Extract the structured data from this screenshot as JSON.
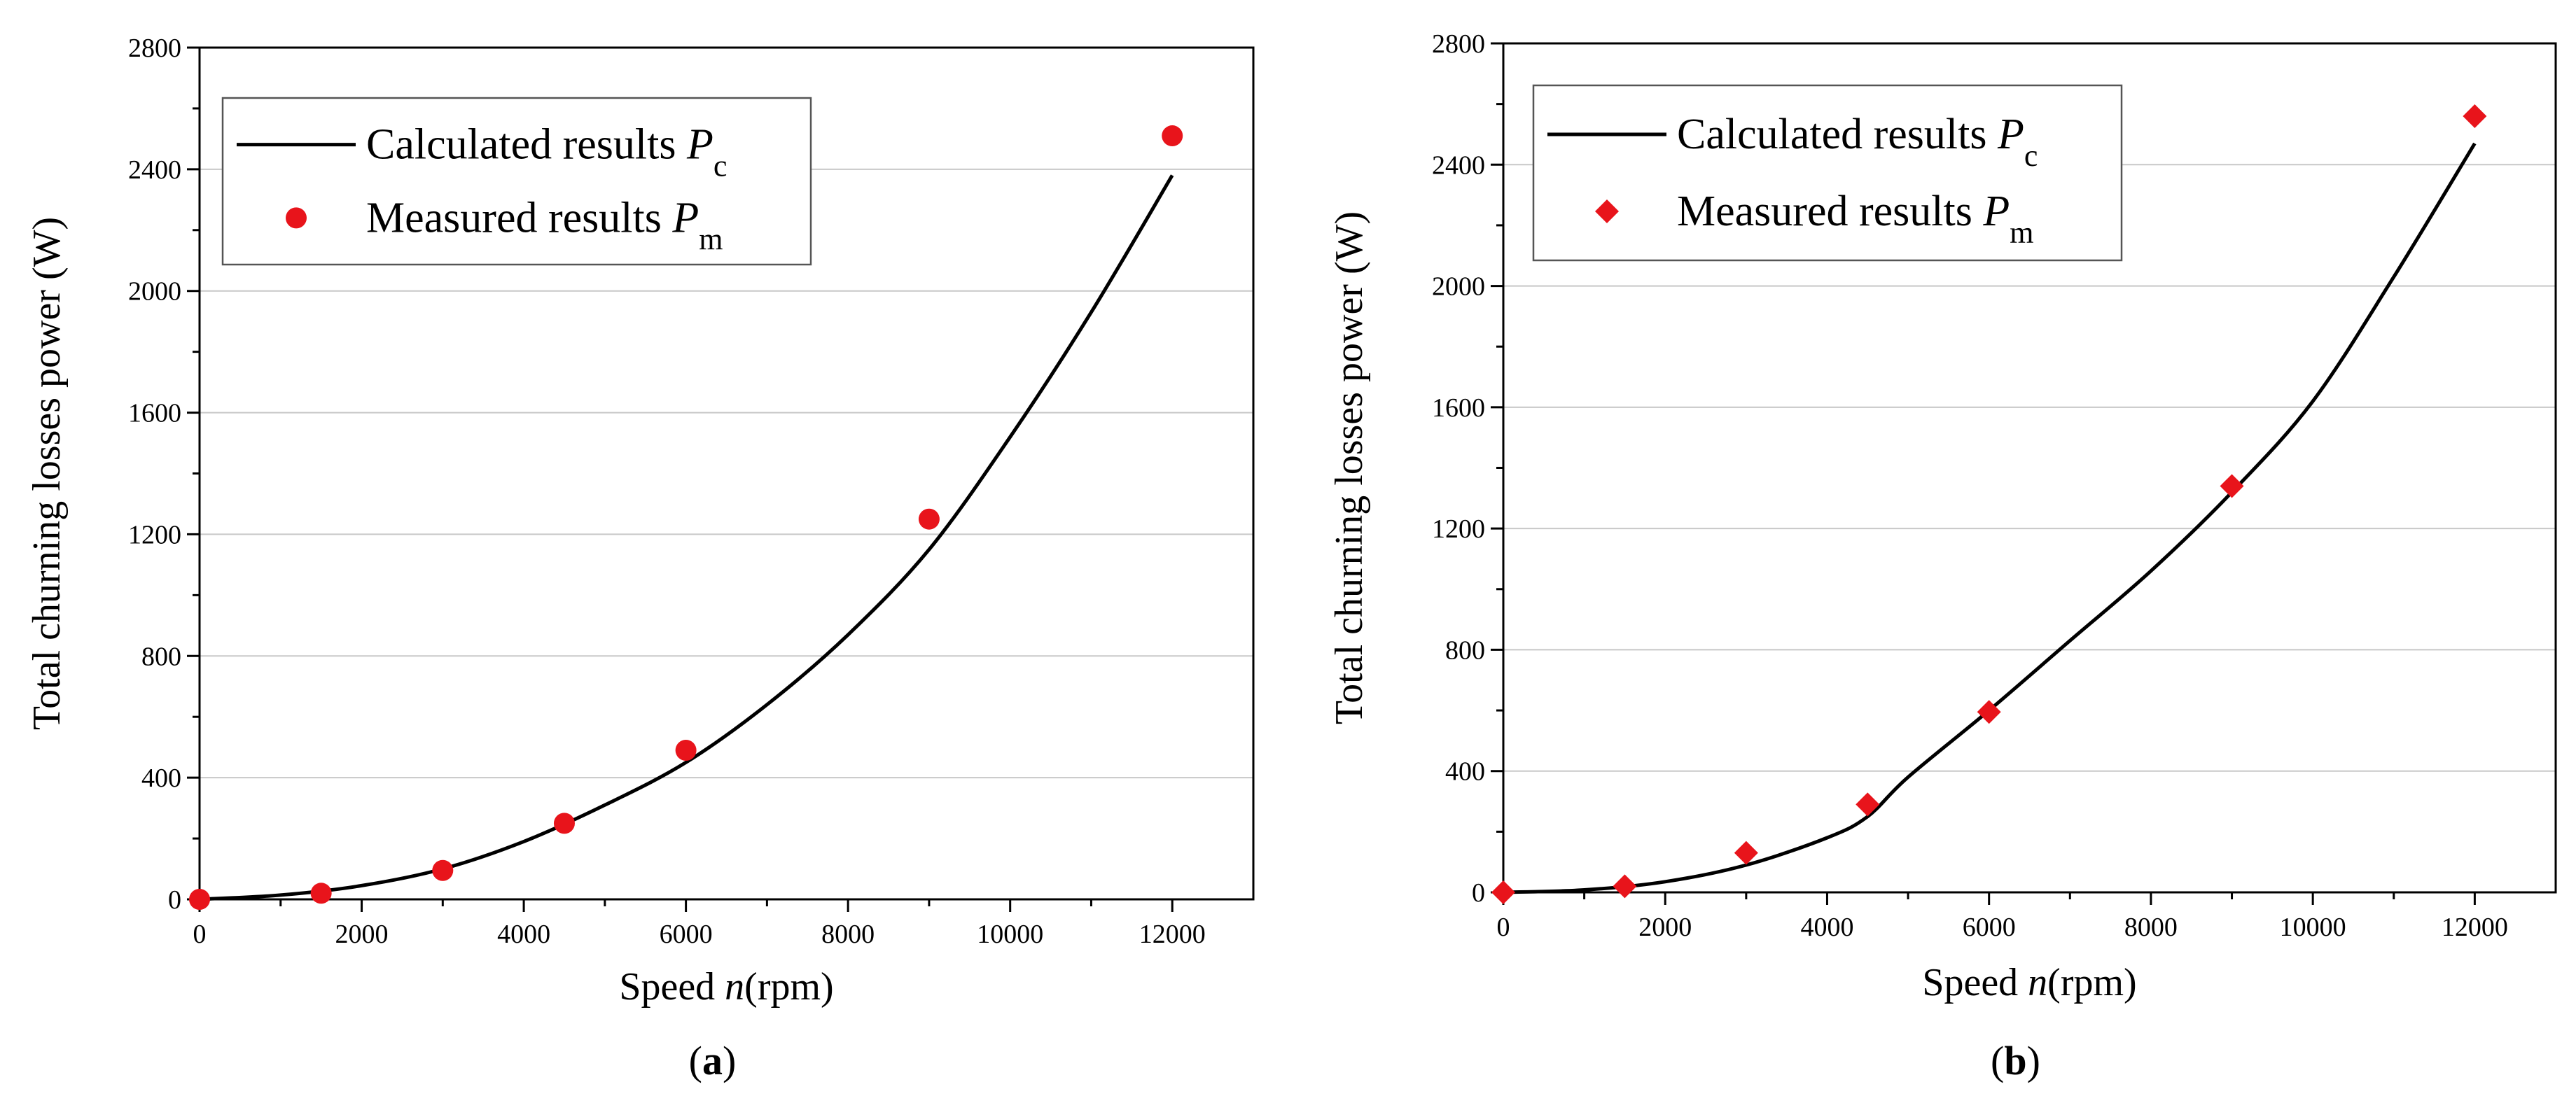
{
  "chart_data": [
    {
      "panel": "a",
      "type": "line",
      "panel_label": "(a)",
      "panel_letter": "a",
      "xlabel": "Speed n(rpm)",
      "xlabel_prefix": "Speed ",
      "xlabel_var": "n",
      "xlabel_suffix": "(rpm)",
      "ylabel": "Total churning losses power (W)",
      "xlim": [
        0,
        13000
      ],
      "ylim": [
        0,
        2800
      ],
      "xticks": [
        0,
        2000,
        4000,
        6000,
        8000,
        10000,
        12000
      ],
      "yticks": [
        0,
        400,
        800,
        1200,
        1600,
        2000,
        2400,
        2800
      ],
      "grid": true,
      "legend_position": "top-left",
      "legend": {
        "calc_label": "Calculated results P",
        "calc_prefix": "Calculated results ",
        "calc_var": "P",
        "calc_sub": "c",
        "meas_label": "Measured results P",
        "meas_prefix": "Measured results ",
        "meas_var": "P",
        "meas_sub": "m"
      },
      "marker": "circle",
      "marker_color": "#e8141b",
      "series": [
        {
          "name": "Calculated results Pc",
          "kind": "line",
          "x": [
            0,
            1000,
            2000,
            3000,
            4000,
            5000,
            6000,
            7000,
            8000,
            9000,
            10000,
            11000,
            12000
          ],
          "values": [
            0,
            14,
            45,
            100,
            190,
            310,
            450,
            640,
            870,
            1150,
            1520,
            1930,
            2380
          ]
        },
        {
          "name": "Measured results Pm",
          "kind": "scatter",
          "x": [
            0,
            1500,
            3000,
            4500,
            6000,
            9000,
            12000
          ],
          "values": [
            0,
            20,
            95,
            250,
            490,
            1250,
            2510
          ]
        }
      ]
    },
    {
      "panel": "b",
      "type": "line",
      "panel_label": "(b)",
      "panel_letter": "b",
      "xlabel": "Speed n(rpm)",
      "xlabel_prefix": "Speed ",
      "xlabel_var": "n",
      "xlabel_suffix": "(rpm)",
      "ylabel": "Total churning losses power (W)",
      "xlim": [
        0,
        13000
      ],
      "ylim": [
        0,
        2800
      ],
      "xticks": [
        0,
        2000,
        4000,
        6000,
        8000,
        10000,
        12000
      ],
      "yticks": [
        0,
        400,
        800,
        1200,
        1600,
        2000,
        2400,
        2800
      ],
      "grid": true,
      "legend_position": "top-left",
      "legend": {
        "calc_label": "Calculated results P",
        "calc_prefix": "Calculated results ",
        "calc_var": "P",
        "calc_sub": "c",
        "meas_label": "Measured results P",
        "meas_prefix": "Measured results ",
        "meas_var": "P",
        "meas_sub": "m"
      },
      "marker": "diamond",
      "marker_color": "#e8141b",
      "series": [
        {
          "name": "Calculated results Pc",
          "kind": "line",
          "x": [
            0,
            1000,
            2000,
            3000,
            4000,
            4500,
            5000,
            6000,
            7000,
            8000,
            9000,
            10000,
            11000,
            12000
          ],
          "values": [
            0,
            8,
            35,
            90,
            180,
            250,
            380,
            600,
            830,
            1060,
            1320,
            1620,
            2030,
            2470
          ]
        },
        {
          "name": "Measured results Pm",
          "kind": "scatter",
          "x": [
            0,
            1500,
            3000,
            4500,
            6000,
            9000,
            12000
          ],
          "values": [
            0,
            20,
            130,
            290,
            595,
            1340,
            2560
          ]
        }
      ]
    }
  ]
}
